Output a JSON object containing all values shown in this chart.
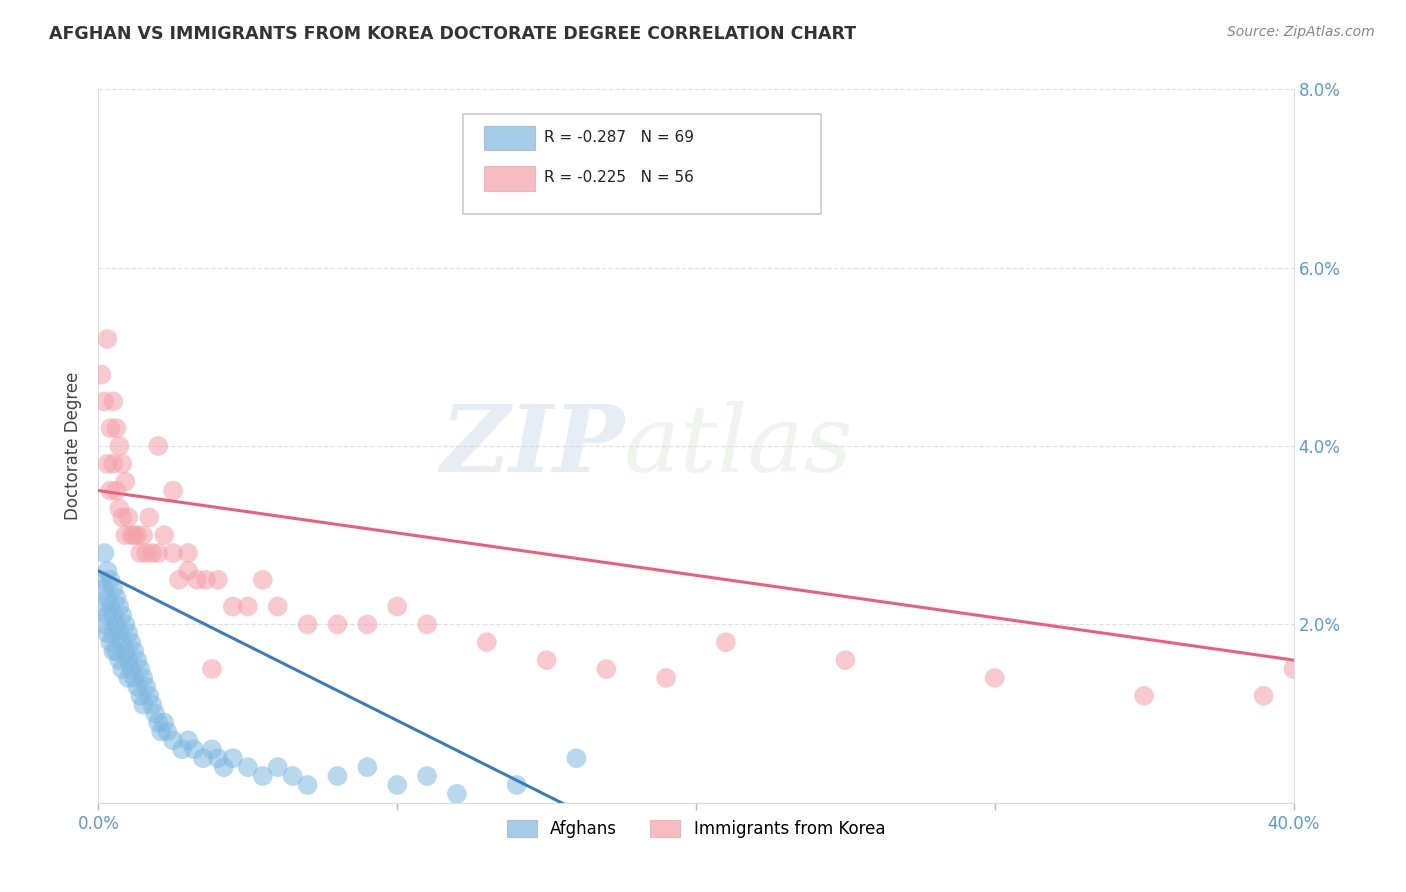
{
  "title": "AFGHAN VS IMMIGRANTS FROM KOREA DOCTORATE DEGREE CORRELATION CHART",
  "source": "Source: ZipAtlas.com",
  "tick_color": "#5b9bd5",
  "ylabel": "Doctorate Degree",
  "xlim": [
    0.0,
    0.4
  ],
  "ylim": [
    0.0,
    0.08
  ],
  "xticks": [
    0.0,
    0.1,
    0.2,
    0.3,
    0.4
  ],
  "xtick_labels_show": [
    "0.0%",
    "",
    "",
    "",
    "40.0%"
  ],
  "yticks": [
    0.0,
    0.02,
    0.04,
    0.06,
    0.08
  ],
  "ytick_labels": [
    "",
    "2.0%",
    "4.0%",
    "6.0%",
    "8.0%"
  ],
  "blue_R": -0.287,
  "blue_N": 69,
  "pink_R": -0.225,
  "pink_N": 56,
  "blue_color": "#7fb8e0",
  "pink_color": "#f4a0a8",
  "blue_line_color": "#3a7dbf",
  "pink_line_color": "#e8607a",
  "legend_label_blue": "Afghans",
  "legend_label_pink": "Immigrants from Korea",
  "watermark_zip": "ZIP",
  "watermark_atlas": "atlas",
  "background_color": "#ffffff",
  "blue_line_x0": 0.0,
  "blue_line_x1": 0.155,
  "blue_line_y0": 0.026,
  "blue_line_y1": 0.0,
  "pink_line_x0": 0.0,
  "pink_line_x1": 0.4,
  "pink_line_y0": 0.035,
  "pink_line_y1": 0.016,
  "blue_x": [
    0.001,
    0.001,
    0.002,
    0.002,
    0.002,
    0.003,
    0.003,
    0.003,
    0.003,
    0.004,
    0.004,
    0.004,
    0.005,
    0.005,
    0.005,
    0.005,
    0.006,
    0.006,
    0.006,
    0.007,
    0.007,
    0.007,
    0.008,
    0.008,
    0.008,
    0.009,
    0.009,
    0.01,
    0.01,
    0.01,
    0.011,
    0.011,
    0.012,
    0.012,
    0.013,
    0.013,
    0.014,
    0.014,
    0.015,
    0.015,
    0.016,
    0.017,
    0.018,
    0.019,
    0.02,
    0.021,
    0.022,
    0.023,
    0.025,
    0.028,
    0.03,
    0.032,
    0.035,
    0.038,
    0.04,
    0.042,
    0.045,
    0.05,
    0.055,
    0.06,
    0.065,
    0.07,
    0.08,
    0.09,
    0.1,
    0.11,
    0.12,
    0.14,
    0.16
  ],
  "blue_y": [
    0.025,
    0.022,
    0.028,
    0.024,
    0.02,
    0.026,
    0.023,
    0.021,
    0.019,
    0.025,
    0.022,
    0.018,
    0.024,
    0.021,
    0.019,
    0.017,
    0.023,
    0.02,
    0.017,
    0.022,
    0.019,
    0.016,
    0.021,
    0.018,
    0.015,
    0.02,
    0.017,
    0.019,
    0.016,
    0.014,
    0.018,
    0.015,
    0.017,
    0.014,
    0.016,
    0.013,
    0.015,
    0.012,
    0.014,
    0.011,
    0.013,
    0.012,
    0.011,
    0.01,
    0.009,
    0.008,
    0.009,
    0.008,
    0.007,
    0.006,
    0.007,
    0.006,
    0.005,
    0.006,
    0.005,
    0.004,
    0.005,
    0.004,
    0.003,
    0.004,
    0.003,
    0.002,
    0.003,
    0.004,
    0.002,
    0.003,
    0.001,
    0.002,
    0.005
  ],
  "pink_x": [
    0.001,
    0.002,
    0.003,
    0.003,
    0.004,
    0.004,
    0.005,
    0.005,
    0.006,
    0.006,
    0.007,
    0.007,
    0.008,
    0.008,
    0.009,
    0.009,
    0.01,
    0.011,
    0.012,
    0.013,
    0.014,
    0.015,
    0.016,
    0.017,
    0.018,
    0.02,
    0.022,
    0.025,
    0.027,
    0.03,
    0.033,
    0.036,
    0.04,
    0.045,
    0.05,
    0.055,
    0.06,
    0.07,
    0.08,
    0.09,
    0.1,
    0.11,
    0.13,
    0.15,
    0.17,
    0.19,
    0.21,
    0.25,
    0.3,
    0.35,
    0.39,
    0.4,
    0.02,
    0.025,
    0.03,
    0.038
  ],
  "pink_y": [
    0.048,
    0.045,
    0.052,
    0.038,
    0.042,
    0.035,
    0.045,
    0.038,
    0.042,
    0.035,
    0.04,
    0.033,
    0.038,
    0.032,
    0.036,
    0.03,
    0.032,
    0.03,
    0.03,
    0.03,
    0.028,
    0.03,
    0.028,
    0.032,
    0.028,
    0.028,
    0.03,
    0.028,
    0.025,
    0.026,
    0.025,
    0.025,
    0.025,
    0.022,
    0.022,
    0.025,
    0.022,
    0.02,
    0.02,
    0.02,
    0.022,
    0.02,
    0.018,
    0.016,
    0.015,
    0.014,
    0.018,
    0.016,
    0.014,
    0.012,
    0.012,
    0.015,
    0.04,
    0.035,
    0.028,
    0.015
  ]
}
